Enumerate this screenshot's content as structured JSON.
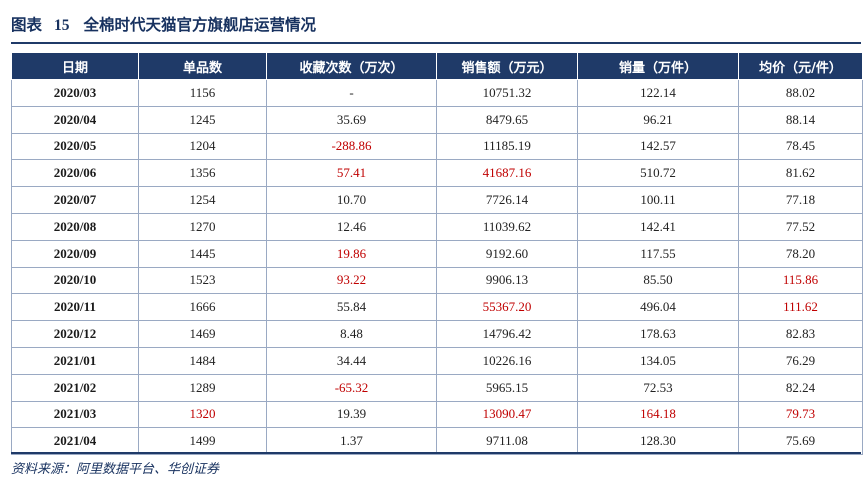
{
  "title": {
    "label": "图表",
    "number": "15",
    "text": "全棉时代天猫官方旗舰店运营情况"
  },
  "table": {
    "headers": [
      "日期",
      "单品数",
      "收藏次数（万次）",
      "销售额（万元）",
      "销量（万件）",
      "均价（元/件）"
    ],
    "rows": [
      {
        "date": "2020/03",
        "items": "1156",
        "favorites": "-",
        "sales": "10751.32",
        "volume": "122.14",
        "price": "88.02"
      },
      {
        "date": "2020/04",
        "items": "1245",
        "favorites": "35.69",
        "sales": "8479.65",
        "volume": "96.21",
        "price": "88.14"
      },
      {
        "date": "2020/05",
        "items": "1204",
        "favorites": "-288.86",
        "sales": "11185.19",
        "volume": "142.57",
        "price": "78.45"
      },
      {
        "date": "2020/06",
        "items": "1356",
        "favorites": "57.41",
        "sales": "41687.16",
        "volume": "510.72",
        "price": "81.62"
      },
      {
        "date": "2020/07",
        "items": "1254",
        "favorites": "10.70",
        "sales": "7726.14",
        "volume": "100.11",
        "price": "77.18"
      },
      {
        "date": "2020/08",
        "items": "1270",
        "favorites": "12.46",
        "sales": "11039.62",
        "volume": "142.41",
        "price": "77.52"
      },
      {
        "date": "2020/09",
        "items": "1445",
        "favorites": "19.86",
        "sales": "9192.60",
        "volume": "117.55",
        "price": "78.20"
      },
      {
        "date": "2020/10",
        "items": "1523",
        "favorites": "93.22",
        "sales": "9906.13",
        "volume": "85.50",
        "price": "115.86"
      },
      {
        "date": "2020/11",
        "items": "1666",
        "favorites": "55.84",
        "sales": "55367.20",
        "volume": "496.04",
        "price": "111.62"
      },
      {
        "date": "2020/12",
        "items": "1469",
        "favorites": "8.48",
        "sales": "14796.42",
        "volume": "178.63",
        "price": "82.83"
      },
      {
        "date": "2021/01",
        "items": "1484",
        "favorites": "34.44",
        "sales": "10226.16",
        "volume": "134.05",
        "price": "76.29"
      },
      {
        "date": "2021/02",
        "items": "1289",
        "favorites": "-65.32",
        "sales": "5965.15",
        "volume": "72.53",
        "price": "82.24"
      },
      {
        "date": "2021/03",
        "items": "1320",
        "favorites": "19.39",
        "sales": "13090.47",
        "volume": "164.18",
        "price": "79.73"
      },
      {
        "date": "2021/04",
        "items": "1499",
        "favorites": "1.37",
        "sales": "9711.08",
        "volume": "128.30",
        "price": "75.69"
      }
    ],
    "highlights": {
      "2020/05": [
        "favorites"
      ],
      "2020/06": [
        "favorites",
        "sales"
      ],
      "2020/09": [
        "favorites"
      ],
      "2020/10": [
        "favorites",
        "price"
      ],
      "2020/11": [
        "sales",
        "price"
      ],
      "2021/02": [
        "favorites"
      ],
      "2021/03": [
        "items",
        "sales",
        "volume",
        "price"
      ]
    }
  },
  "source": "资料来源：阿里数据平台、华创证券",
  "colors": {
    "header_bg": "#1f3a68",
    "title": "#17315f",
    "highlight": "#c00000",
    "border": "#9aa9c3"
  }
}
